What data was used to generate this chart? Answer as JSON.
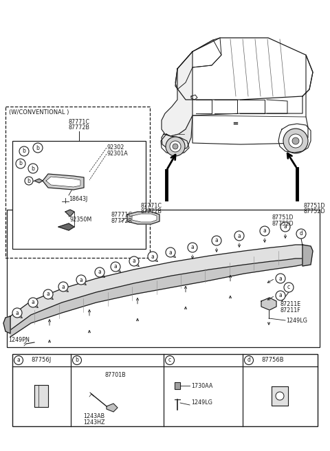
{
  "bg_color": "#ffffff",
  "line_color": "#1a1a1a",
  "text_color": "#1a1a1a",
  "fig_width": 4.8,
  "fig_height": 6.56,
  "dpi": 100,
  "labels": {
    "conventional_box": "(W/CONVENTIONAL )",
    "p87771C_top": "87771C",
    "p87772B_top": "87772B",
    "p92302": "92302",
    "p92301A": "92301A",
    "p18643J": "18643J",
    "p92350M": "92350M",
    "p87771C_mid": "87771C",
    "p87772B_mid": "87772B",
    "p87751D": "87751D",
    "p87752D": "87752D",
    "p1249PN": "1249PN",
    "p87211E": "87211E",
    "p87211F": "87211F",
    "p1249LG_right": "1249LG",
    "p87756J": "87756J",
    "p87701B": "87701B",
    "p1243AB": "1243AB",
    "p1243HZ": "1243HZ",
    "p1730AA": "1730AA",
    "p1249LG_bot": "1249LG",
    "p87756B": "87756B"
  }
}
